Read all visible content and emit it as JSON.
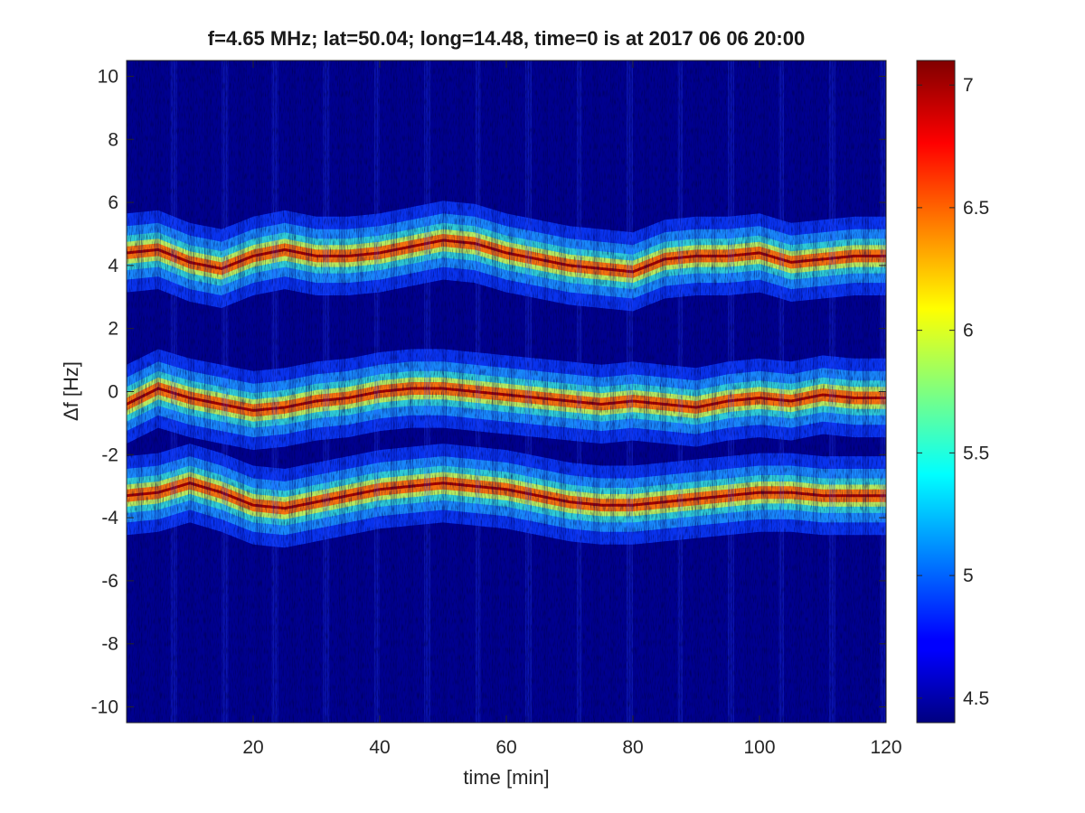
{
  "chart_data": {
    "type": "heatmap",
    "title": "f=4.65 MHz;  lat=50.04; long=14.48, time=0 is at 2017 06 06 20:00",
    "xlabel": "time [min]",
    "ylabel": "Δf [Hz]",
    "xlim": [
      0,
      120
    ],
    "ylim": [
      -10.5,
      10.5
    ],
    "x_ticks": [
      20,
      40,
      60,
      80,
      100,
      120
    ],
    "y_ticks": [
      -10,
      -8,
      -6,
      -4,
      -2,
      0,
      2,
      4,
      6,
      8,
      10
    ],
    "colorbar": {
      "colormap": "jet",
      "range": [
        4.4,
        7.1
      ],
      "ticks": [
        4.5,
        5,
        5.5,
        6,
        6.5,
        7
      ]
    },
    "grid": false,
    "traces": [
      {
        "time": [
          0,
          5,
          10,
          15,
          20,
          25,
          30,
          35,
          40,
          45,
          50,
          55,
          60,
          65,
          70,
          75,
          80,
          85,
          90,
          95,
          100,
          105,
          110,
          115,
          120
        ],
        "df": [
          4.4,
          4.5,
          4.1,
          3.9,
          4.3,
          4.5,
          4.3,
          4.3,
          4.4,
          4.6,
          4.8,
          4.7,
          4.4,
          4.2,
          4.0,
          3.9,
          3.8,
          4.2,
          4.3,
          4.3,
          4.4,
          4.1,
          4.2,
          4.3,
          4.3
        ]
      },
      {
        "time": [
          0,
          5,
          10,
          15,
          20,
          25,
          30,
          35,
          40,
          45,
          50,
          55,
          60,
          65,
          70,
          75,
          80,
          85,
          90,
          95,
          100,
          105,
          110,
          115,
          120
        ],
        "df": [
          -0.4,
          0.1,
          -0.2,
          -0.4,
          -0.6,
          -0.5,
          -0.3,
          -0.2,
          0.0,
          0.1,
          0.1,
          0.0,
          -0.1,
          -0.2,
          -0.3,
          -0.4,
          -0.3,
          -0.4,
          -0.5,
          -0.3,
          -0.2,
          -0.3,
          -0.1,
          -0.2,
          -0.2
        ]
      },
      {
        "time": [
          0,
          5,
          10,
          15,
          20,
          25,
          30,
          35,
          40,
          45,
          50,
          55,
          60,
          65,
          70,
          75,
          80,
          85,
          90,
          95,
          100,
          105,
          110,
          115,
          120
        ],
        "df": [
          -3.3,
          -3.2,
          -2.9,
          -3.2,
          -3.6,
          -3.7,
          -3.5,
          -3.3,
          -3.1,
          -3.0,
          -2.9,
          -3.0,
          -3.1,
          -3.3,
          -3.5,
          -3.6,
          -3.6,
          -3.5,
          -3.4,
          -3.3,
          -3.2,
          -3.2,
          -3.3,
          -3.3,
          -3.3
        ]
      }
    ]
  }
}
